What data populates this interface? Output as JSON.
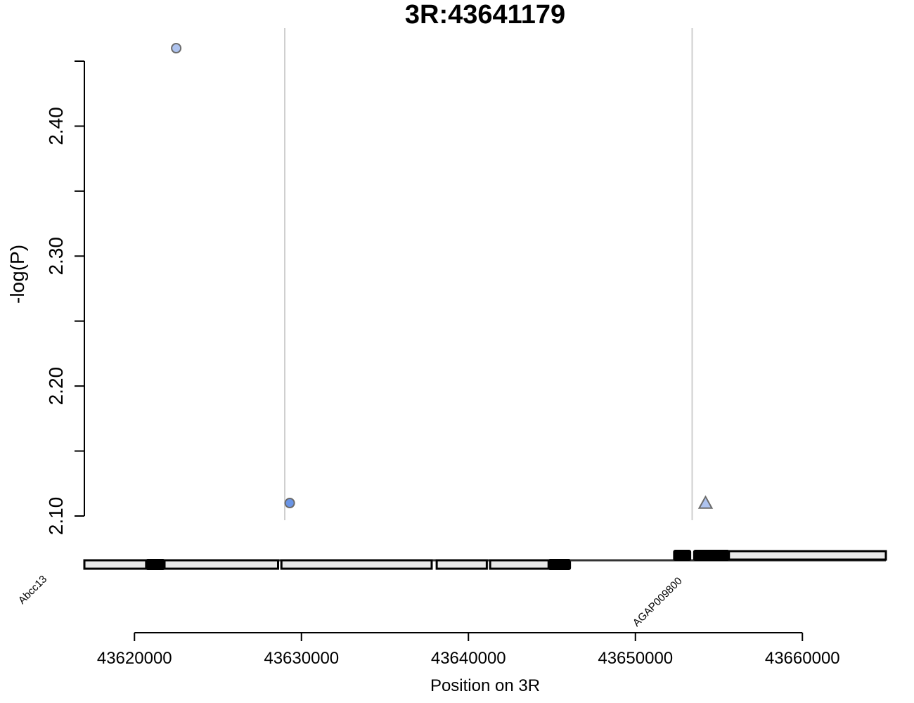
{
  "chart_data": {
    "type": "scatter",
    "title": "3R:43641179",
    "xlabel": "Position on 3R",
    "ylabel": "-log(P)",
    "xlim": [
      43617000,
      43665000
    ],
    "ylim": [
      2.1,
      2.45
    ],
    "x_ticks": [
      43620000,
      43630000,
      43640000,
      43650000,
      43660000
    ],
    "x_tick_labels": [
      "43620000",
      "43630000",
      "43640000",
      "43650000",
      "43660000"
    ],
    "y_ticks": [
      2.1,
      2.15,
      2.2,
      2.25,
      2.3,
      2.35,
      2.4,
      2.45
    ],
    "y_tick_labels": [
      "2.10",
      "",
      "2.20",
      "",
      "2.30",
      "",
      "2.40",
      ""
    ],
    "reference_lines_x": [
      43629000,
      43653400
    ],
    "points": [
      {
        "x": 43622500,
        "y": 2.46,
        "shape": "circle",
        "color": "#aec3ef"
      },
      {
        "x": 43629300,
        "y": 2.11,
        "shape": "circle",
        "color": "#6a95e6"
      },
      {
        "x": 43654200,
        "y": 2.11,
        "shape": "triangle",
        "color": "#aec3ef"
      }
    ],
    "genes": [
      {
        "name": "Abcc13",
        "start": 43617000,
        "end": 43646100,
        "strand_row": "lower",
        "utr_segments": [
          [
            43617000,
            43620700
          ],
          [
            43621800,
            43628600
          ],
          [
            43628800,
            43637800
          ],
          [
            43638100,
            43641100
          ],
          [
            43641300,
            43644800
          ]
        ],
        "cds_segments": [
          [
            43620700,
            43621800
          ],
          [
            43644800,
            43646100
          ]
        ]
      },
      {
        "name": "AGAP009800",
        "start": 43646100,
        "end": 43665000,
        "strand_row": "upper",
        "utr_segments": [
          [
            43655600,
            43665000
          ]
        ],
        "cds_segments": [
          [
            43652300,
            43653300
          ],
          [
            43653500,
            43655600
          ]
        ]
      }
    ],
    "colors": {
      "point_light": "#aec3ef",
      "point_dark": "#6a95e6",
      "point_stroke": "#6b6b6b",
      "ref_line": "#cfcfcf",
      "utr_fill": "#e8e8e8"
    },
    "grid": false,
    "legend": "none"
  }
}
